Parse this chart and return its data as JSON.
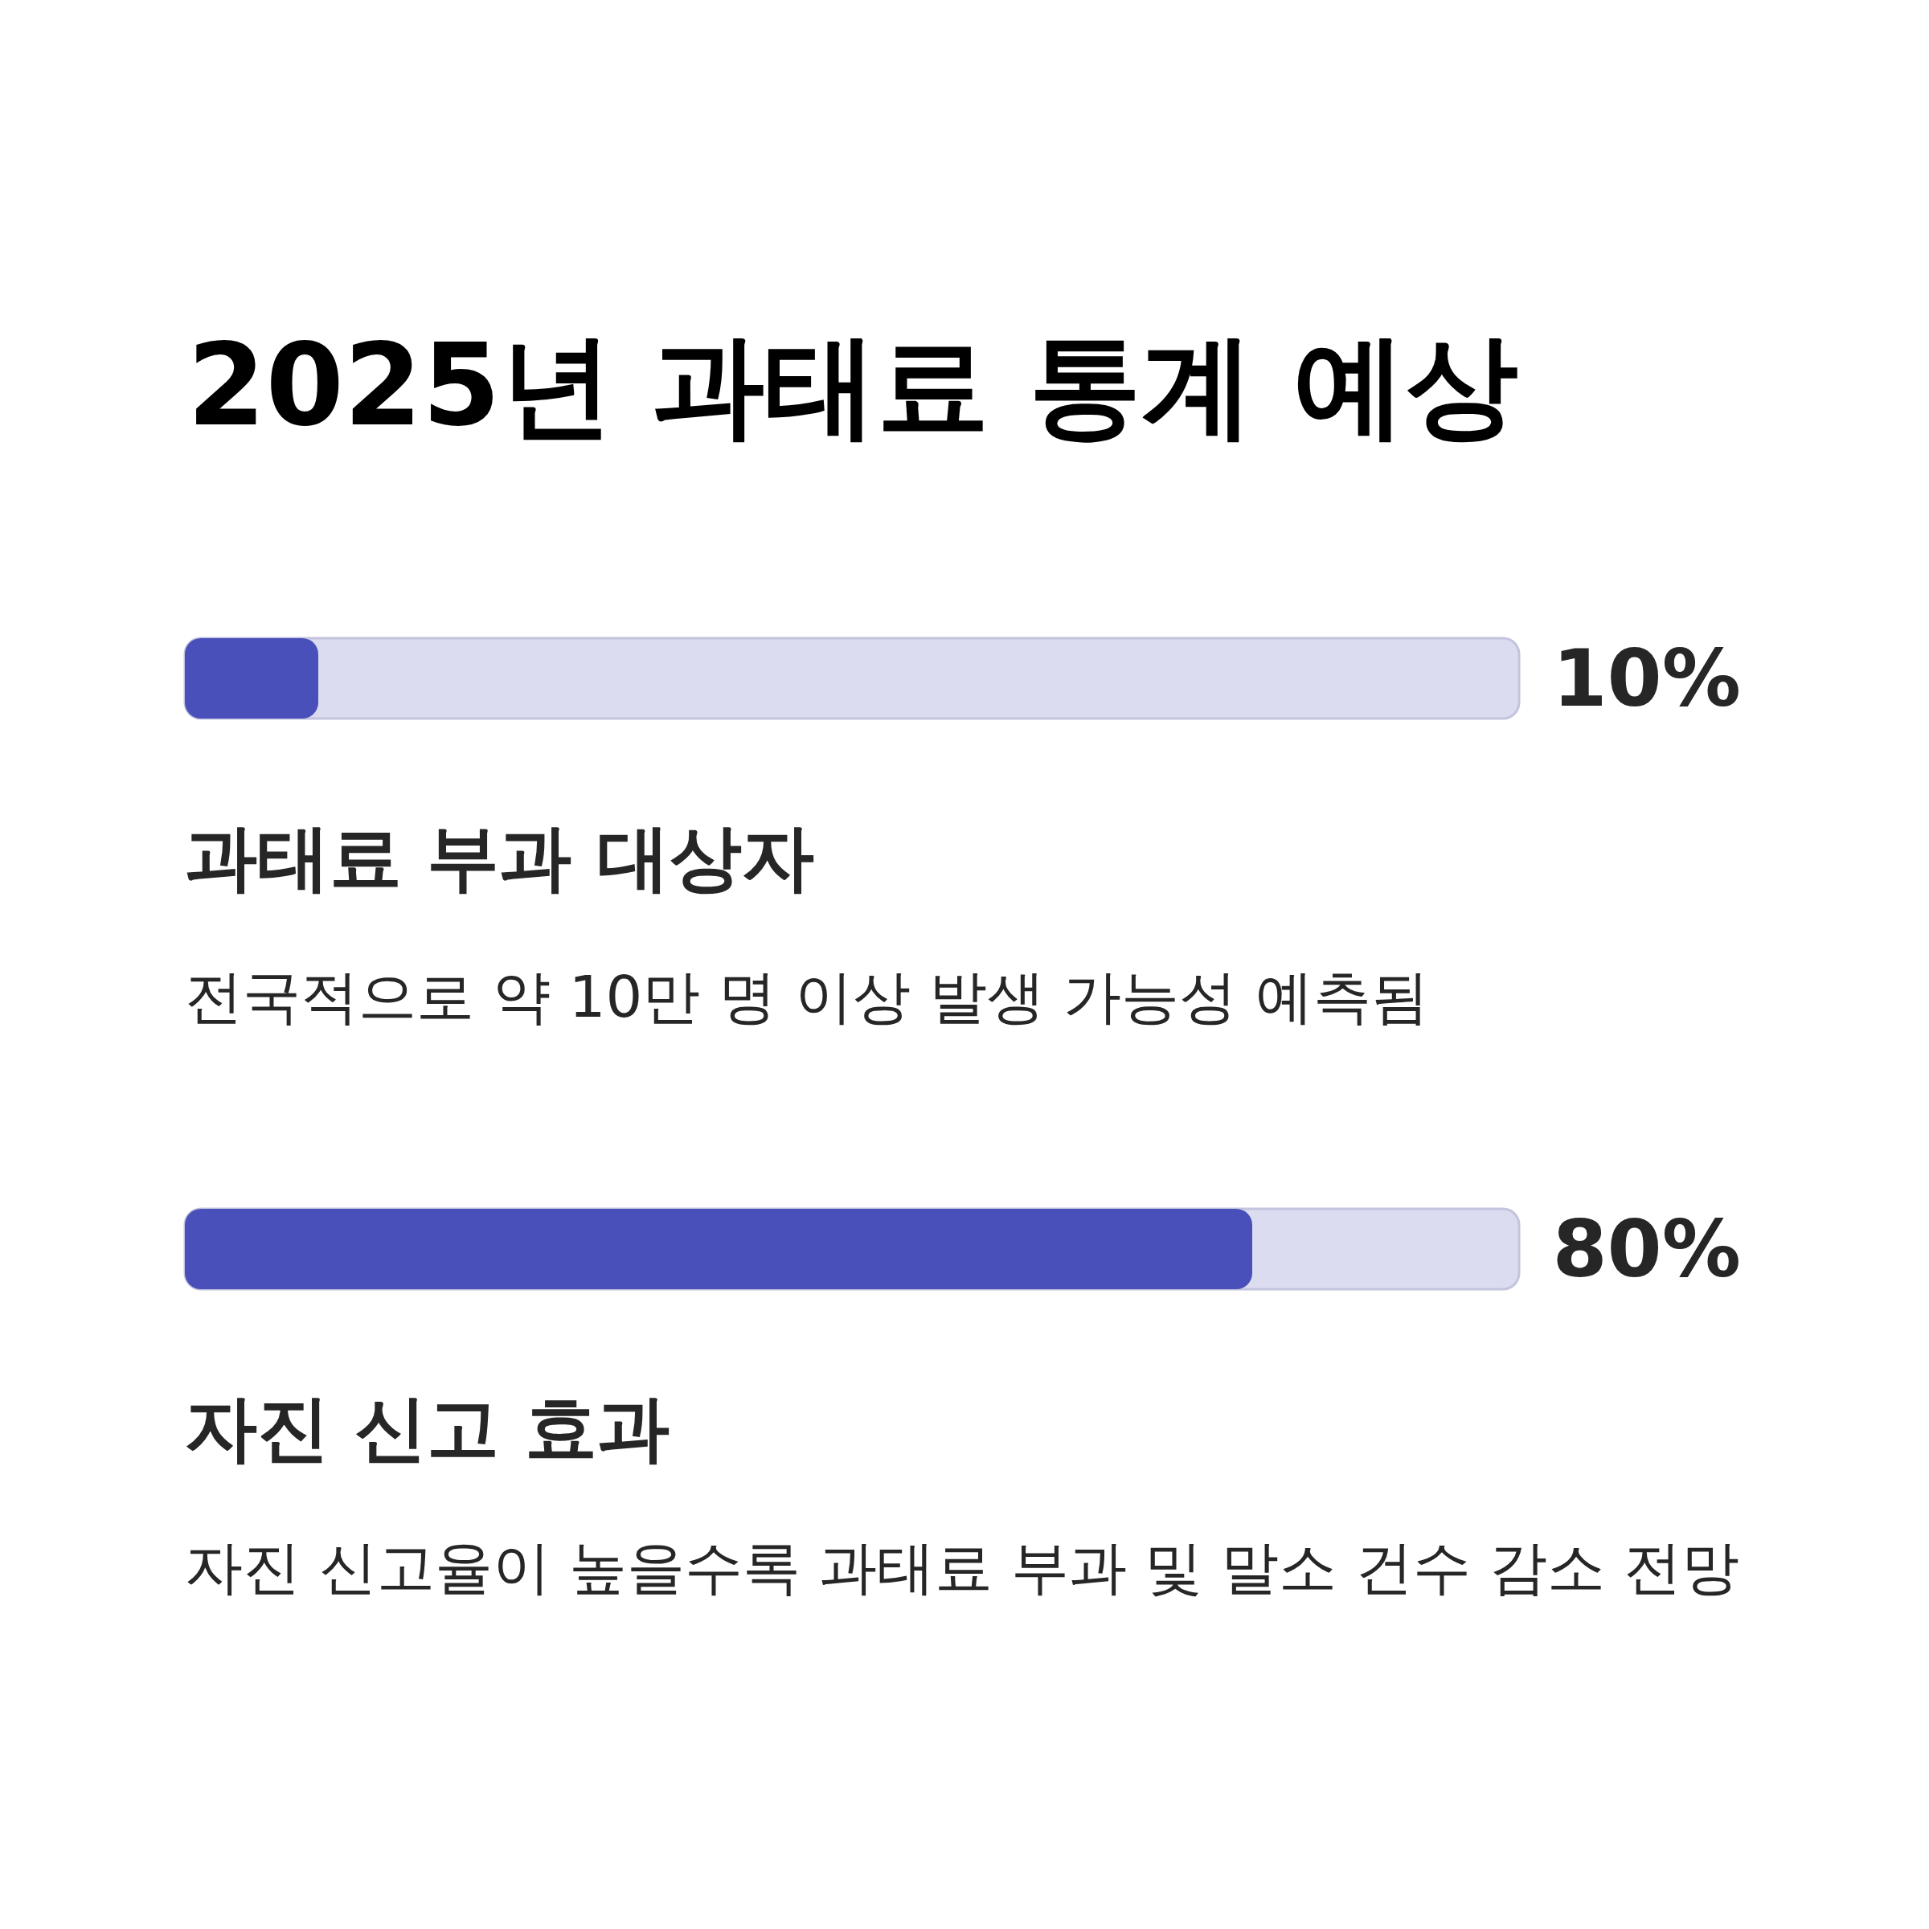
{
  "chart_data": {
    "type": "bar",
    "title": "2025년 과태료 통계 예상",
    "orientation": "horizontal",
    "categories": [
      "과태료 부과 대상자",
      "자진 신고 효과"
    ],
    "values": [
      10,
      80
    ],
    "color": "#4a50b9",
    "value_labels": [
      "10%",
      "80%"
    ],
    "xlim": [
      0,
      100
    ],
    "tick_labels": "y",
    "annotations": [
      "전국적으로 약 10만 명 이상 발생 가능성 예측됨",
      "자진 신고율이 높을수록 과태료 부과 및 말소 건수 감소 전망"
    ]
  }
}
